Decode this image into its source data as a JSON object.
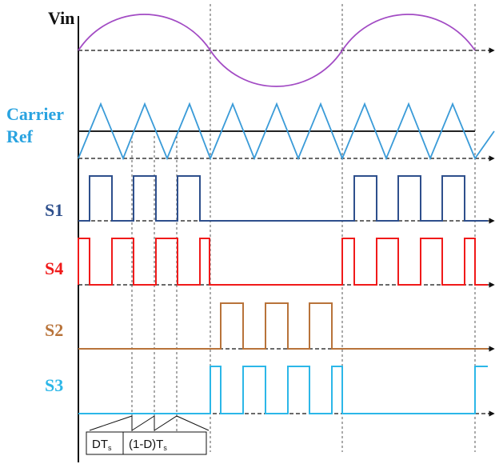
{
  "labels": {
    "vin": "Vin",
    "carrier": "Carrier",
    "ref": "Ref",
    "s1": "S1",
    "s4": "S4",
    "s2": "S2",
    "s3": "S3",
    "dts_main": "DT",
    "dts_sub": "s",
    "one_minus_d_main": "(1-D)T",
    "one_minus_d_sub": "s"
  },
  "colors": {
    "vin_trace": "#a24bc4",
    "carrier_label": "#29a3e0",
    "carrier_trace": "#3a9bd8",
    "ref_line": "#222222",
    "s1": "#2e4f8c",
    "s4": "#f01a1a",
    "s2": "#b8733a",
    "s3": "#2cb7e8",
    "axis": "#111111",
    "guide": "#555555"
  }
}
